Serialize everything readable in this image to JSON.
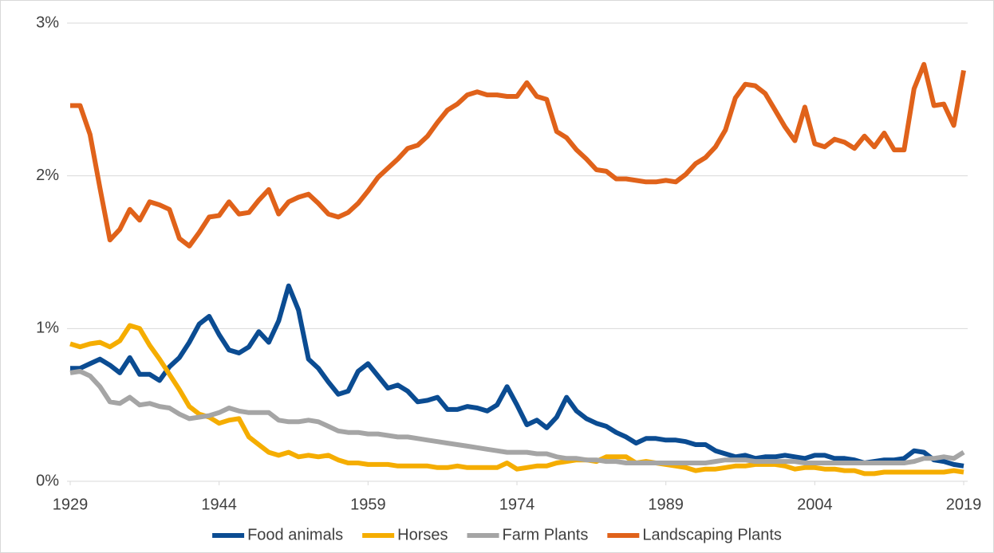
{
  "chart_data": {
    "type": "line",
    "x": [
      1929,
      1930,
      1931,
      1932,
      1933,
      1934,
      1935,
      1936,
      1937,
      1938,
      1939,
      1940,
      1941,
      1942,
      1943,
      1944,
      1945,
      1946,
      1947,
      1948,
      1949,
      1950,
      1951,
      1952,
      1953,
      1954,
      1955,
      1956,
      1957,
      1958,
      1959,
      1960,
      1961,
      1962,
      1963,
      1964,
      1965,
      1966,
      1967,
      1968,
      1969,
      1970,
      1971,
      1972,
      1973,
      1974,
      1975,
      1976,
      1977,
      1978,
      1979,
      1980,
      1981,
      1982,
      1983,
      1984,
      1985,
      1986,
      1987,
      1988,
      1989,
      1990,
      1991,
      1992,
      1993,
      1994,
      1995,
      1996,
      1997,
      1998,
      1999,
      2000,
      2001,
      2002,
      2003,
      2004,
      2005,
      2006,
      2007,
      2008,
      2009,
      2010,
      2011,
      2012,
      2013,
      2014,
      2015,
      2016,
      2017,
      2018,
      2019
    ],
    "series": [
      {
        "name": "Food animals",
        "color": "#0b4c92",
        "values": [
          0.74,
          0.74,
          0.77,
          0.8,
          0.76,
          0.71,
          0.81,
          0.7,
          0.7,
          0.66,
          0.75,
          0.81,
          0.91,
          1.03,
          1.08,
          0.96,
          0.86,
          0.84,
          0.88,
          0.98,
          0.91,
          1.05,
          1.28,
          1.12,
          0.8,
          0.74,
          0.65,
          0.57,
          0.59,
          0.72,
          0.77,
          0.69,
          0.61,
          0.63,
          0.59,
          0.52,
          0.53,
          0.55,
          0.47,
          0.47,
          0.49,
          0.48,
          0.46,
          0.5,
          0.62,
          0.5,
          0.37,
          0.4,
          0.35,
          0.42,
          0.55,
          0.46,
          0.41,
          0.38,
          0.36,
          0.32,
          0.29,
          0.25,
          0.28,
          0.28,
          0.27,
          0.27,
          0.26,
          0.24,
          0.24,
          0.2,
          0.18,
          0.16,
          0.17,
          0.15,
          0.16,
          0.16,
          0.17,
          0.16,
          0.15,
          0.17,
          0.17,
          0.15,
          0.15,
          0.14,
          0.12,
          0.13,
          0.14,
          0.14,
          0.15,
          0.2,
          0.19,
          0.14,
          0.13,
          0.11,
          0.1
        ]
      },
      {
        "name": "Horses",
        "color": "#f5ad00",
        "values": [
          0.9,
          0.88,
          0.9,
          0.91,
          0.88,
          0.92,
          1.02,
          1.0,
          0.89,
          0.8,
          0.7,
          0.6,
          0.49,
          0.44,
          0.42,
          0.38,
          0.4,
          0.41,
          0.29,
          0.24,
          0.19,
          0.17,
          0.19,
          0.16,
          0.17,
          0.16,
          0.17,
          0.14,
          0.12,
          0.12,
          0.11,
          0.11,
          0.11,
          0.1,
          0.1,
          0.1,
          0.1,
          0.09,
          0.09,
          0.1,
          0.09,
          0.09,
          0.09,
          0.09,
          0.12,
          0.08,
          0.09,
          0.1,
          0.1,
          0.12,
          0.13,
          0.14,
          0.14,
          0.13,
          0.16,
          0.16,
          0.16,
          0.12,
          0.13,
          0.12,
          0.11,
          0.1,
          0.09,
          0.07,
          0.08,
          0.08,
          0.09,
          0.1,
          0.1,
          0.11,
          0.11,
          0.11,
          0.1,
          0.08,
          0.09,
          0.09,
          0.08,
          0.08,
          0.07,
          0.07,
          0.05,
          0.05,
          0.06,
          0.06,
          0.06,
          0.06,
          0.06,
          0.06,
          0.06,
          0.07,
          0.06
        ]
      },
      {
        "name": "Farm Plants",
        "color": "#a5a5a5",
        "values": [
          0.71,
          0.72,
          0.69,
          0.62,
          0.52,
          0.51,
          0.55,
          0.5,
          0.51,
          0.49,
          0.48,
          0.44,
          0.41,
          0.42,
          0.43,
          0.45,
          0.48,
          0.46,
          0.45,
          0.45,
          0.45,
          0.4,
          0.39,
          0.39,
          0.4,
          0.39,
          0.36,
          0.33,
          0.32,
          0.32,
          0.31,
          0.31,
          0.3,
          0.29,
          0.29,
          0.28,
          0.27,
          0.26,
          0.25,
          0.24,
          0.23,
          0.22,
          0.21,
          0.2,
          0.19,
          0.19,
          0.19,
          0.18,
          0.18,
          0.16,
          0.15,
          0.15,
          0.14,
          0.14,
          0.13,
          0.13,
          0.12,
          0.12,
          0.12,
          0.12,
          0.12,
          0.12,
          0.12,
          0.12,
          0.12,
          0.13,
          0.14,
          0.14,
          0.14,
          0.13,
          0.13,
          0.13,
          0.13,
          0.13,
          0.12,
          0.12,
          0.12,
          0.12,
          0.12,
          0.12,
          0.12,
          0.12,
          0.12,
          0.12,
          0.12,
          0.13,
          0.15,
          0.15,
          0.16,
          0.15,
          0.19
        ]
      },
      {
        "name": "Landscaping Plants",
        "color": "#e0621a",
        "values": [
          2.46,
          2.46,
          2.27,
          1.92,
          1.58,
          1.65,
          1.78,
          1.71,
          1.83,
          1.81,
          1.78,
          1.59,
          1.54,
          1.63,
          1.73,
          1.74,
          1.83,
          1.75,
          1.76,
          1.84,
          1.91,
          1.75,
          1.83,
          1.86,
          1.88,
          1.82,
          1.75,
          1.73,
          1.76,
          1.82,
          1.9,
          1.99,
          2.05,
          2.11,
          2.18,
          2.2,
          2.26,
          2.35,
          2.43,
          2.47,
          2.53,
          2.55,
          2.53,
          2.53,
          2.52,
          2.52,
          2.61,
          2.52,
          2.5,
          2.29,
          2.25,
          2.17,
          2.11,
          2.04,
          2.03,
          1.98,
          1.98,
          1.97,
          1.96,
          1.96,
          1.97,
          1.96,
          2.01,
          2.08,
          2.12,
          2.19,
          2.3,
          2.51,
          2.6,
          2.59,
          2.54,
          2.43,
          2.32,
          2.23,
          2.45,
          2.21,
          2.19,
          2.24,
          2.22,
          2.18,
          2.26,
          2.19,
          2.28,
          2.17,
          2.17,
          2.57,
          2.73,
          2.46,
          2.47,
          2.33,
          2.69
        ]
      }
    ],
    "xlim": [
      1929,
      2019
    ],
    "xticks": [
      1929,
      1944,
      1959,
      1974,
      1989,
      2004,
      2019
    ],
    "ylim": [
      0,
      3
    ],
    "yticks": [
      {
        "value": 0,
        "label": "0%"
      },
      {
        "value": 1,
        "label": "1%"
      },
      {
        "value": 2,
        "label": "2%"
      },
      {
        "value": 3,
        "label": "3%"
      }
    ],
    "grid": true,
    "legend": "bottom"
  }
}
